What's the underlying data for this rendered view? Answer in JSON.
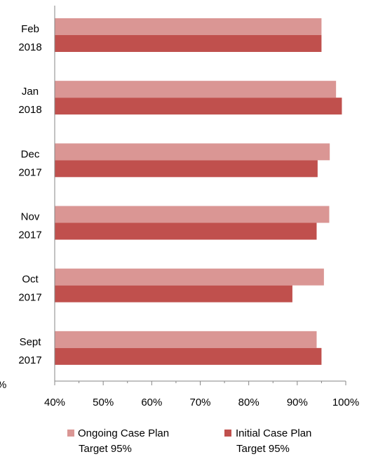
{
  "chart_data": {
    "type": "bar",
    "orientation": "horizontal",
    "categories": [
      [
        "Feb",
        "2018"
      ],
      [
        "Jan",
        "2018"
      ],
      [
        "Dec",
        "2017"
      ],
      [
        "Nov",
        "2017"
      ],
      [
        "Oct",
        "2017"
      ],
      [
        "Sept",
        "2017"
      ]
    ],
    "series": [
      {
        "name_lines": [
          "Ongoing Case Plan",
          "Target 95%"
        ],
        "color": "#da9694",
        "values": [
          95,
          98,
          96.7,
          96.6,
          95.5,
          94
        ]
      },
      {
        "name_lines": [
          "Initial Case Plan",
          "Target 95%"
        ],
        "color": "#c0504d",
        "values": [
          95,
          99.2,
          94.2,
          94,
          89,
          95
        ]
      }
    ],
    "xlim": [
      40,
      100
    ],
    "xticks": [
      "40%",
      "50%",
      "60%",
      "70%",
      "80%",
      "90%",
      "100%"
    ],
    "clipped_label": "%",
    "legend_position": "bottom",
    "grid": false,
    "axis_color": "#868686"
  }
}
